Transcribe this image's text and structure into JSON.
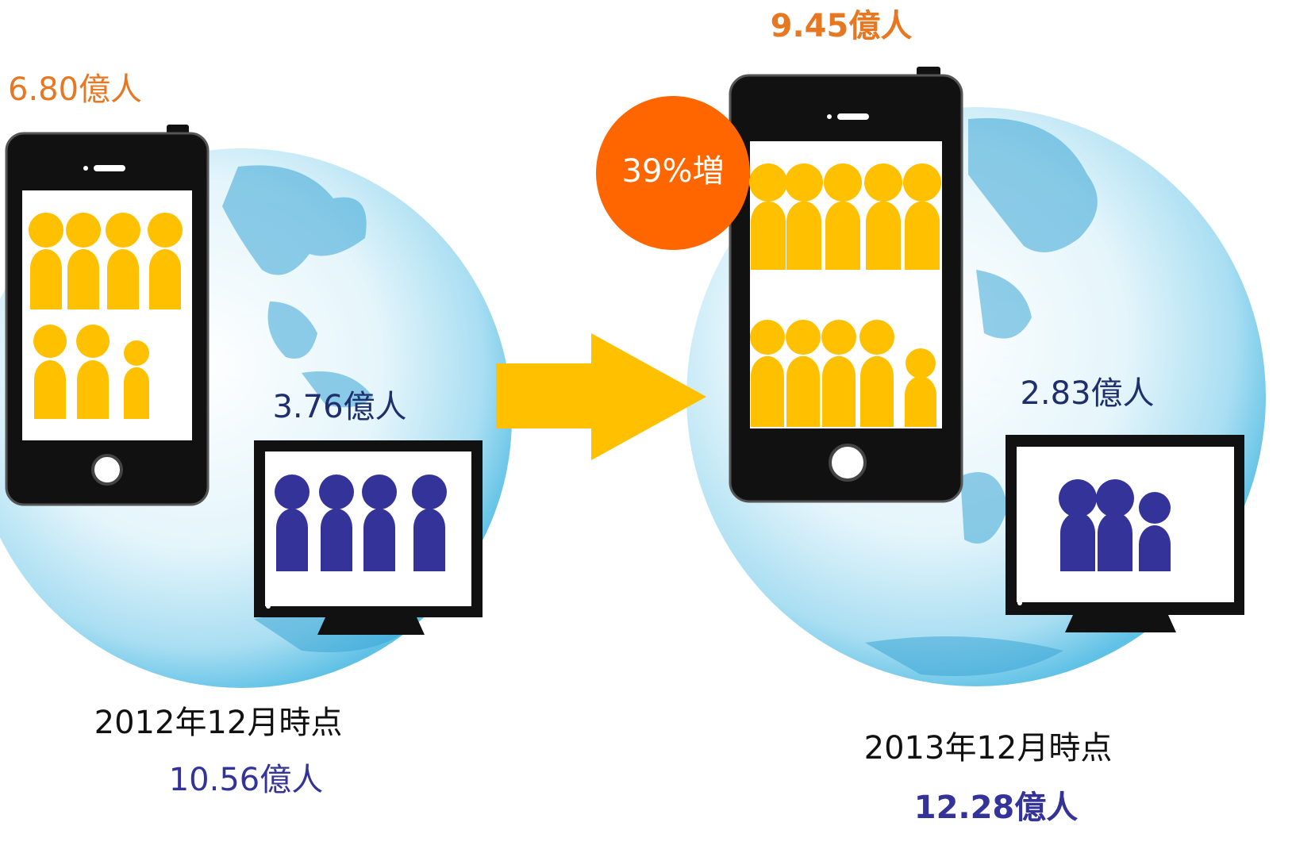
{
  "left": {
    "smartphone_users": "6.80億人",
    "pc_users": "3.76億人",
    "date": "2012年12月時点",
    "total": "10.56億人"
  },
  "right": {
    "smartphone_users": "9.45億人",
    "growth": "39%増",
    "pc_users": "2.83億人",
    "date": "2013年12月時点",
    "total": "12.28億人"
  }
}
